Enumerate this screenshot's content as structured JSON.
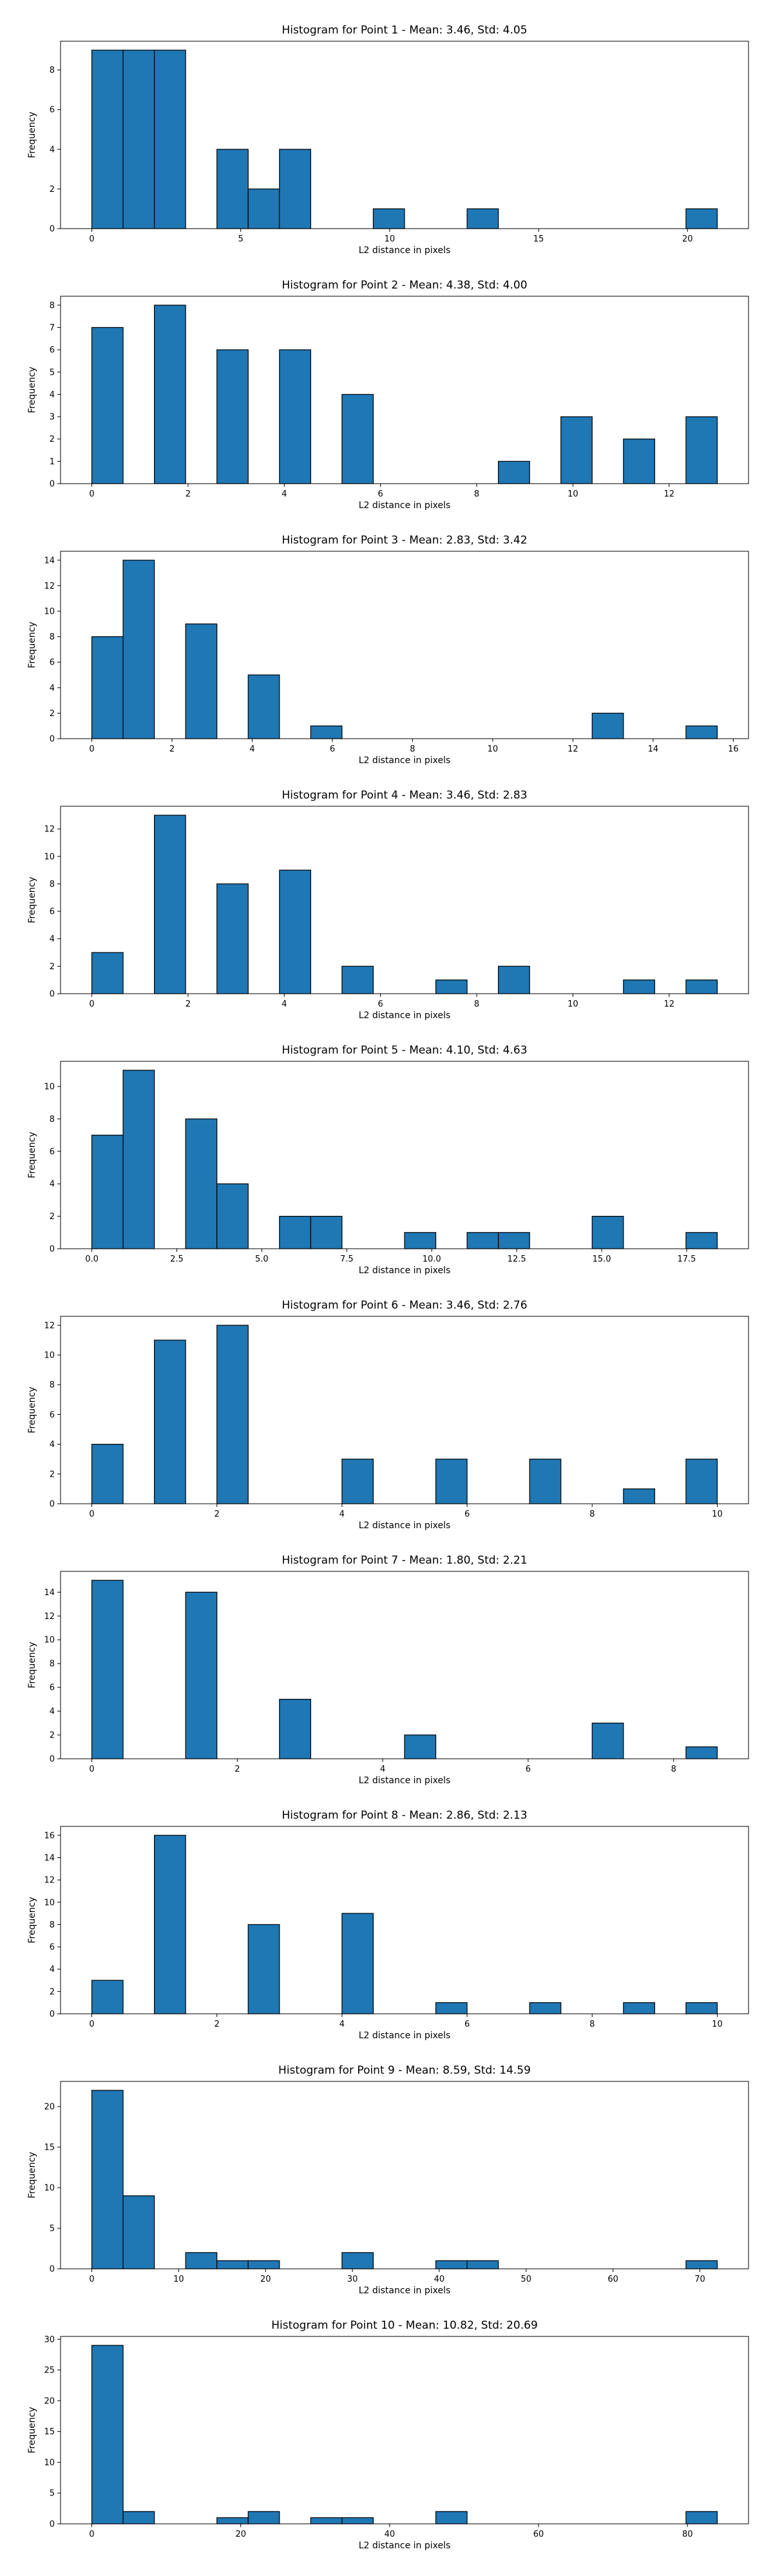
{
  "bar_color": "#1f77b4",
  "edge_color": "#000000",
  "chart_data": [
    {
      "type": "bar",
      "title": "Histogram for Point 1 - Mean: 3.46, Std: 4.05",
      "xlabel": "L2 distance in pixels",
      "ylabel": "Frequency",
      "xlim": [
        -1.05,
        22.05
      ],
      "ylim": [
        0,
        9.45
      ],
      "xticks": [
        0,
        5,
        10,
        15,
        20
      ],
      "yticks": [
        0,
        2,
        4,
        6,
        8
      ],
      "bins": [
        {
          "x0": 0,
          "x1": 1.05,
          "count": 9
        },
        {
          "x0": 1.05,
          "x1": 2.1,
          "count": 9
        },
        {
          "x0": 2.1,
          "x1": 3.15,
          "count": 9
        },
        {
          "x0": 4.2,
          "x1": 5.25,
          "count": 4
        },
        {
          "x0": 5.25,
          "x1": 6.3,
          "count": 2
        },
        {
          "x0": 6.3,
          "x1": 7.35,
          "count": 4
        },
        {
          "x0": 9.45,
          "x1": 10.5,
          "count": 1
        },
        {
          "x0": 12.6,
          "x1": 13.65,
          "count": 1
        },
        {
          "x0": 19.95,
          "x1": 21.0,
          "count": 1
        }
      ]
    },
    {
      "type": "bar",
      "title": "Histogram for Point 2 - Mean: 4.38, Std: 4.00",
      "xlabel": "L2 distance in pixels",
      "ylabel": "Frequency",
      "xlim": [
        -0.65,
        13.65
      ],
      "ylim": [
        0,
        8.4
      ],
      "xticks": [
        0,
        2,
        4,
        6,
        8,
        10,
        12
      ],
      "yticks": [
        0,
        1,
        2,
        3,
        4,
        5,
        6,
        7,
        8
      ],
      "bins": [
        {
          "x0": 0,
          "x1": 0.65,
          "count": 7
        },
        {
          "x0": 1.3,
          "x1": 1.95,
          "count": 8
        },
        {
          "x0": 2.6,
          "x1": 3.25,
          "count": 6
        },
        {
          "x0": 3.9,
          "x1": 4.55,
          "count": 6
        },
        {
          "x0": 5.2,
          "x1": 5.85,
          "count": 4
        },
        {
          "x0": 8.45,
          "x1": 9.1,
          "count": 1
        },
        {
          "x0": 9.75,
          "x1": 10.4,
          "count": 3
        },
        {
          "x0": 11.05,
          "x1": 11.7,
          "count": 2
        },
        {
          "x0": 12.35,
          "x1": 13.0,
          "count": 3
        }
      ]
    },
    {
      "type": "bar",
      "title": "Histogram for Point 3 - Mean: 2.83, Std: 3.42",
      "xlabel": "L2 distance in pixels",
      "ylabel": "Frequency",
      "xlim": [
        -0.78,
        16.38
      ],
      "ylim": [
        0,
        14.7
      ],
      "xticks": [
        0,
        2,
        4,
        6,
        8,
        10,
        12,
        14,
        16
      ],
      "yticks": [
        0,
        2,
        4,
        6,
        8,
        10,
        12,
        14
      ],
      "bins": [
        {
          "x0": 0,
          "x1": 0.78,
          "count": 8
        },
        {
          "x0": 0.78,
          "x1": 1.56,
          "count": 14
        },
        {
          "x0": 2.34,
          "x1": 3.12,
          "count": 9
        },
        {
          "x0": 3.9,
          "x1": 4.68,
          "count": 5
        },
        {
          "x0": 5.46,
          "x1": 6.24,
          "count": 1
        },
        {
          "x0": 12.48,
          "x1": 13.26,
          "count": 2
        },
        {
          "x0": 14.82,
          "x1": 15.6,
          "count": 1
        }
      ]
    },
    {
      "type": "bar",
      "title": "Histogram for Point 4 - Mean: 3.46, Std: 2.83",
      "xlabel": "L2 distance in pixels",
      "ylabel": "Frequency",
      "xlim": [
        -0.65,
        13.65
      ],
      "ylim": [
        0,
        13.65
      ],
      "xticks": [
        0,
        2,
        4,
        6,
        8,
        10,
        12
      ],
      "yticks": [
        0,
        2,
        4,
        6,
        8,
        10,
        12
      ],
      "bins": [
        {
          "x0": 0,
          "x1": 0.65,
          "count": 3
        },
        {
          "x0": 1.3,
          "x1": 1.95,
          "count": 13
        },
        {
          "x0": 2.6,
          "x1": 3.25,
          "count": 8
        },
        {
          "x0": 3.9,
          "x1": 4.55,
          "count": 9
        },
        {
          "x0": 5.2,
          "x1": 5.85,
          "count": 2
        },
        {
          "x0": 7.15,
          "x1": 7.8,
          "count": 1
        },
        {
          "x0": 8.45,
          "x1": 9.1,
          "count": 2
        },
        {
          "x0": 11.05,
          "x1": 11.7,
          "count": 1
        },
        {
          "x0": 12.35,
          "x1": 13.0,
          "count": 1
        }
      ]
    },
    {
      "type": "bar",
      "title": "Histogram for Point 5 - Mean: 4.10, Std: 4.63",
      "xlabel": "L2 distance in pixels",
      "ylabel": "Frequency",
      "xlim": [
        -0.92,
        19.32
      ],
      "ylim": [
        0,
        11.55
      ],
      "xticks": [
        0.0,
        2.5,
        5.0,
        7.5,
        10.0,
        12.5,
        15.0,
        17.5
      ],
      "xtick_labels": [
        "0.0",
        "2.5",
        "5.0",
        "7.5",
        "10.0",
        "12.5",
        "15.0",
        "17.5"
      ],
      "yticks": [
        0,
        2,
        4,
        6,
        8,
        10
      ],
      "bins": [
        {
          "x0": 0,
          "x1": 0.92,
          "count": 7
        },
        {
          "x0": 0.92,
          "x1": 1.84,
          "count": 11
        },
        {
          "x0": 2.76,
          "x1": 3.68,
          "count": 8
        },
        {
          "x0": 3.68,
          "x1": 4.6,
          "count": 4
        },
        {
          "x0": 5.52,
          "x1": 6.44,
          "count": 2
        },
        {
          "x0": 6.44,
          "x1": 7.36,
          "count": 2
        },
        {
          "x0": 9.2,
          "x1": 10.12,
          "count": 1
        },
        {
          "x0": 11.04,
          "x1": 11.96,
          "count": 1
        },
        {
          "x0": 11.96,
          "x1": 12.88,
          "count": 1
        },
        {
          "x0": 14.72,
          "x1": 15.64,
          "count": 2
        },
        {
          "x0": 17.48,
          "x1": 18.4,
          "count": 1
        }
      ]
    },
    {
      "type": "bar",
      "title": "Histogram for Point 6 - Mean: 3.46, Std: 2.76",
      "xlabel": "L2 distance in pixels",
      "ylabel": "Frequency",
      "xlim": [
        -0.5,
        10.5
      ],
      "ylim": [
        0,
        12.6
      ],
      "xticks": [
        0,
        2,
        4,
        6,
        8,
        10
      ],
      "yticks": [
        0,
        2,
        4,
        6,
        8,
        10,
        12
      ],
      "bins": [
        {
          "x0": 0,
          "x1": 0.5,
          "count": 4
        },
        {
          "x0": 1.0,
          "x1": 1.5,
          "count": 11
        },
        {
          "x0": 2.0,
          "x1": 2.5,
          "count": 12
        },
        {
          "x0": 4.0,
          "x1": 4.5,
          "count": 3
        },
        {
          "x0": 5.5,
          "x1": 6.0,
          "count": 3
        },
        {
          "x0": 7.0,
          "x1": 7.5,
          "count": 3
        },
        {
          "x0": 8.5,
          "x1": 9.0,
          "count": 1
        },
        {
          "x0": 9.5,
          "x1": 10.0,
          "count": 3
        }
      ]
    },
    {
      "type": "bar",
      "title": "Histogram for Point 7 - Mean: 1.80, Std: 2.21",
      "xlabel": "L2 distance in pixels",
      "ylabel": "Frequency",
      "xlim": [
        -0.43,
        9.03
      ],
      "ylim": [
        0,
        15.75
      ],
      "xticks": [
        0,
        2,
        4,
        6,
        8
      ],
      "yticks": [
        0,
        2,
        4,
        6,
        8,
        10,
        12,
        14
      ],
      "bins": [
        {
          "x0": 0,
          "x1": 0.43,
          "count": 15
        },
        {
          "x0": 1.29,
          "x1": 1.72,
          "count": 14
        },
        {
          "x0": 2.58,
          "x1": 3.01,
          "count": 5
        },
        {
          "x0": 4.3,
          "x1": 4.73,
          "count": 2
        },
        {
          "x0": 6.88,
          "x1": 7.31,
          "count": 3
        },
        {
          "x0": 8.17,
          "x1": 8.6,
          "count": 1
        }
      ]
    },
    {
      "type": "bar",
      "title": "Histogram for Point 8 - Mean: 2.86, Std: 2.13",
      "xlabel": "L2 distance in pixels",
      "ylabel": "Frequency",
      "xlim": [
        -0.5,
        10.5
      ],
      "ylim": [
        0,
        16.8
      ],
      "xticks": [
        0,
        2,
        4,
        6,
        8,
        10
      ],
      "yticks": [
        0,
        2,
        4,
        6,
        8,
        10,
        12,
        14,
        16
      ],
      "bins": [
        {
          "x0": 0,
          "x1": 0.5,
          "count": 3
        },
        {
          "x0": 1.0,
          "x1": 1.5,
          "count": 16
        },
        {
          "x0": 2.5,
          "x1": 3.0,
          "count": 8
        },
        {
          "x0": 4.0,
          "x1": 4.5,
          "count": 9
        },
        {
          "x0": 5.5,
          "x1": 6.0,
          "count": 1
        },
        {
          "x0": 7.0,
          "x1": 7.5,
          "count": 1
        },
        {
          "x0": 8.5,
          "x1": 9.0,
          "count": 1
        },
        {
          "x0": 9.5,
          "x1": 10.0,
          "count": 1
        }
      ]
    },
    {
      "type": "bar",
      "title": "Histogram for Point 9 - Mean: 8.59, Std: 14.59",
      "xlabel": "L2 distance in pixels",
      "ylabel": "Frequency",
      "xlim": [
        -3.6,
        75.6
      ],
      "ylim": [
        0,
        23.1
      ],
      "xticks": [
        0,
        10,
        20,
        30,
        40,
        50,
        60,
        70
      ],
      "yticks": [
        0,
        5,
        10,
        15,
        20
      ],
      "bins": [
        {
          "x0": 0,
          "x1": 3.6,
          "count": 22
        },
        {
          "x0": 3.6,
          "x1": 7.2,
          "count": 9
        },
        {
          "x0": 10.8,
          "x1": 14.4,
          "count": 2
        },
        {
          "x0": 14.4,
          "x1": 18.0,
          "count": 1
        },
        {
          "x0": 18.0,
          "x1": 21.6,
          "count": 1
        },
        {
          "x0": 28.8,
          "x1": 32.4,
          "count": 2
        },
        {
          "x0": 39.6,
          "x1": 43.2,
          "count": 1
        },
        {
          "x0": 43.2,
          "x1": 46.8,
          "count": 1
        },
        {
          "x0": 68.4,
          "x1": 72.0,
          "count": 1
        }
      ]
    },
    {
      "type": "bar",
      "title": "Histogram for Point 10 - Mean: 10.82, Std: 20.69",
      "xlabel": "L2 distance in pixels",
      "ylabel": "Frequency",
      "xlim": [
        -4.2,
        88.2
      ],
      "ylim": [
        0,
        30.45
      ],
      "xticks": [
        0,
        20,
        40,
        60,
        80
      ],
      "yticks": [
        0,
        5,
        10,
        15,
        20,
        25,
        30
      ],
      "bins": [
        {
          "x0": 0,
          "x1": 4.2,
          "count": 29
        },
        {
          "x0": 4.2,
          "x1": 8.4,
          "count": 2
        },
        {
          "x0": 16.8,
          "x1": 21.0,
          "count": 1
        },
        {
          "x0": 21.0,
          "x1": 25.2,
          "count": 2
        },
        {
          "x0": 29.4,
          "x1": 33.6,
          "count": 1
        },
        {
          "x0": 33.6,
          "x1": 37.8,
          "count": 1
        },
        {
          "x0": 46.2,
          "x1": 50.4,
          "count": 2
        },
        {
          "x0": 79.8,
          "x1": 84.0,
          "count": 2
        }
      ]
    }
  ]
}
